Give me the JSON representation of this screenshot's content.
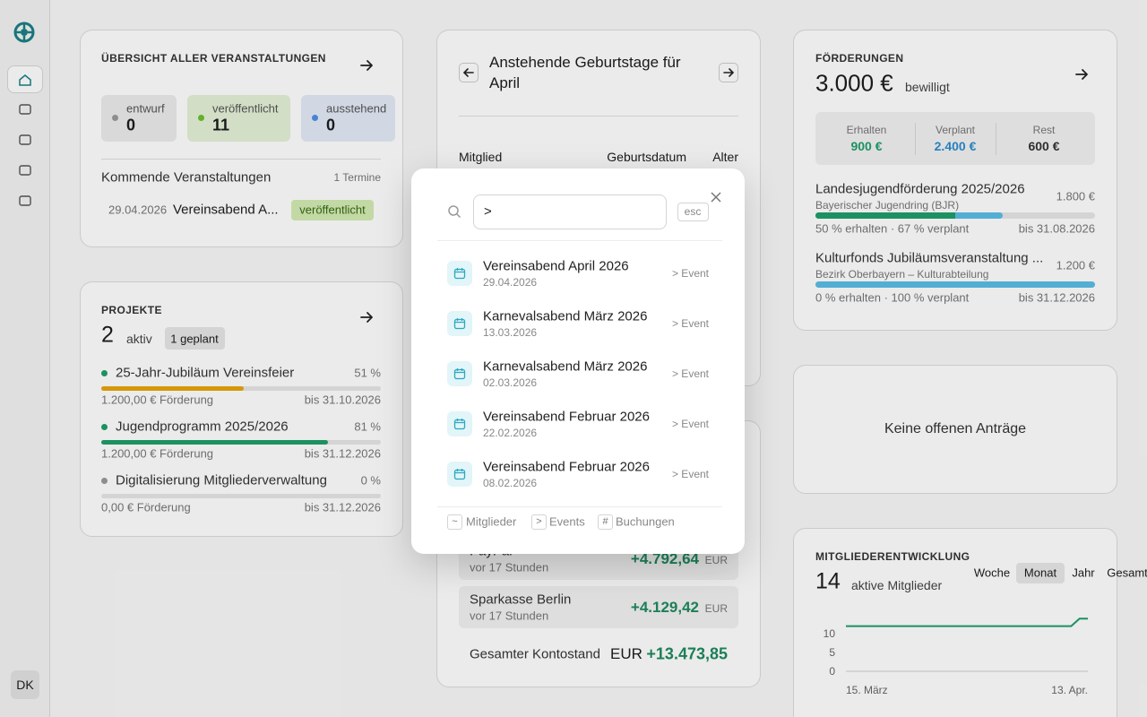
{
  "sidebar": {
    "avatar": "DK"
  },
  "events": {
    "title": "ÜBERSICHT ALLER VERANSTALTUNGEN",
    "statuses": [
      {
        "label": "entwurf",
        "count": 0
      },
      {
        "label": "veröffentlicht",
        "count": 11
      },
      {
        "label": "ausstehend",
        "count": 0
      }
    ],
    "upcoming_title": "Kommende Veranstaltungen",
    "upcoming_count": "1 Termine",
    "items": [
      {
        "date": "29.04.2026",
        "name": "Vereinsabend A...",
        "status": "veröffentlicht"
      }
    ]
  },
  "projects": {
    "title": "PROJEKTE",
    "count": 2,
    "count_label": "aktiv",
    "planned": "1 geplant",
    "items": [
      {
        "name": "25-Jahr-Jubiläum Vereinsfeier",
        "progress": 51,
        "progress_label": "51 %",
        "funding": "1.200,00 € Förderung",
        "deadline": "bis 31.10.2026"
      },
      {
        "name": "Jugendprogramm 2025/2026",
        "progress": 81,
        "progress_label": "81 %",
        "funding": "1.200,00 € Förderung",
        "deadline": "bis 31.12.2026"
      },
      {
        "name": "Digitalisierung Mitgliederverwaltung",
        "progress": 0,
        "progress_label": "0 %",
        "funding": "0,00 € Förderung",
        "deadline": "bis 31.12.2026"
      }
    ]
  },
  "birthdays": {
    "title": "Anstehende Geburtstage für April",
    "columns": [
      "Mitglied",
      "Geburtsdatum",
      "Alter"
    ]
  },
  "accounts": {
    "rows": [
      {
        "name": "PayPal",
        "updated": "vor 17 Stunden",
        "amount": "+4.792,64",
        "currency": "EUR"
      },
      {
        "name": "Sparkasse Berlin",
        "updated": "vor 17 Stunden",
        "amount": "+4.129,42",
        "currency": "EUR"
      }
    ],
    "total_label": "Gesamter Kontostand",
    "total_currency": "EUR",
    "total_amount": "+13.473,85"
  },
  "funding": {
    "title": "FÖRDERUNGEN",
    "total": "3.000 €",
    "total_label": "bewilligt",
    "stats": [
      {
        "label": "Erhalten",
        "value": "900 €"
      },
      {
        "label": "Verplant",
        "value": "2.400 €"
      },
      {
        "label": "Rest",
        "value": "600 €"
      }
    ],
    "items": [
      {
        "name": "Landesjugendförderung 2025/2026",
        "amount": "1.800 €",
        "source": "Bayerischer Jugendring (BJR)",
        "received_pct": 50,
        "planned_pct": 67,
        "summary": "50 % erhalten · 67 % verplant",
        "deadline": "bis 31.08.2026"
      },
      {
        "name": "Kulturfonds Jubiläumsveranstaltung ...",
        "amount": "1.200 €",
        "source": "Bezirk Oberbayern – Kulturabteilung",
        "received_pct": 0,
        "planned_pct": 100,
        "summary": "0 % erhalten · 100 % verplant",
        "deadline": "bis 31.12.2026"
      }
    ]
  },
  "applications": {
    "empty": "Keine offenen Anträge"
  },
  "members": {
    "title": "MITGLIEDERENTWICKLUNG",
    "count": 14,
    "count_label": "aktive Mitglieder",
    "tabs": [
      "Woche",
      "Monat",
      "Jahr",
      "Gesamt"
    ],
    "active_tab": "Monat"
  },
  "chart_data": {
    "type": "line",
    "categories": [
      "15. März",
      null,
      null,
      null,
      null,
      null,
      null,
      null,
      null,
      null,
      null,
      null,
      null,
      null,
      null,
      null,
      null,
      null,
      null,
      null,
      null,
      null,
      null,
      null,
      null,
      null,
      null,
      null,
      null,
      "13. Apr."
    ],
    "series": [
      {
        "color": "#1f9e6a",
        "values": [
          12,
          12,
          12,
          12,
          12,
          12,
          12,
          12,
          12,
          12,
          12,
          12,
          12,
          12,
          12,
          12,
          12,
          12,
          12,
          12,
          12,
          12,
          12,
          12,
          12,
          12,
          12,
          12,
          14,
          14
        ]
      }
    ],
    "ylim": [
      0,
      15
    ],
    "yticks": [
      0,
      5,
      10
    ],
    "grid": false
  },
  "search": {
    "query": ">",
    "esc": "esc",
    "results": [
      {
        "title": "Vereinsabend April 2026",
        "date": "29.04.2026",
        "kind": "> Event"
      },
      {
        "title": "Karnevalsabend März 2026",
        "date": "13.03.2026",
        "kind": "> Event"
      },
      {
        "title": "Karnevalsabend März 2026",
        "date": "02.03.2026",
        "kind": "> Event"
      },
      {
        "title": "Vereinsabend Februar 2026",
        "date": "22.02.2026",
        "kind": "> Event"
      },
      {
        "title": "Vereinsabend Februar 2026",
        "date": "08.02.2026",
        "kind": "> Event"
      }
    ],
    "hints": [
      {
        "key": "~",
        "label": "Mitglieder"
      },
      {
        "key": ">",
        "label": "Events"
      },
      {
        "key": "#",
        "label": "Buchungen"
      }
    ]
  }
}
